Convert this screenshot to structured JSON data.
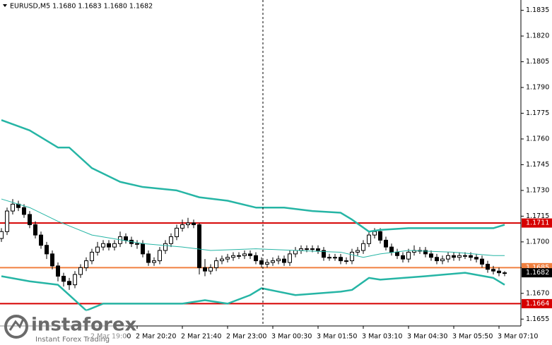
{
  "header": {
    "title": "EURUSD,M5  1.1680 1.1683 1.1680 1.1682"
  },
  "watermark": {
    "brand": "instaforex",
    "tagline": "Instant Forex Trading"
  },
  "chart_data": {
    "type": "candlestick",
    "categories": [
      null,
      null,
      null,
      null,
      null,
      null,
      null,
      null,
      null,
      null,
      null,
      null,
      null,
      null,
      null,
      null,
      "2 Mar 19:00",
      null,
      null,
      null,
      null,
      null,
      null,
      null,
      "2 Mar 20:20",
      null,
      null,
      null,
      null,
      null,
      null,
      null,
      "2 Mar 21:40",
      null,
      null,
      null,
      null,
      null,
      null,
      null,
      "2 Mar 23:00",
      null,
      null,
      null,
      null,
      null,
      null,
      null,
      "3 Mar 00:30",
      null,
      null,
      null,
      null,
      null,
      null,
      null,
      "3 Mar 01:50",
      null,
      null,
      null,
      null,
      null,
      null,
      null,
      "3 Mar 03:10",
      null,
      null,
      null,
      null,
      null,
      null,
      null,
      "3 Mar 04:30",
      null,
      null,
      null,
      null,
      null,
      null,
      null,
      "3 Mar 05:50",
      null,
      null,
      null,
      null,
      null,
      null,
      null,
      "3 Mar 07:10",
      null
    ],
    "open": [
      1.1702,
      1.1706,
      1.1718,
      1.1722,
      1.172,
      1.1716,
      1.171,
      1.1704,
      1.1698,
      1.1693,
      1.1686,
      1.168,
      1.1677,
      1.1675,
      1.1681,
      1.1685,
      1.1689,
      1.1694,
      1.1697,
      1.1699,
      1.1697,
      1.1699,
      1.1703,
      1.1701,
      1.1699,
      1.1699,
      1.1693,
      1.1688,
      1.1689,
      1.1695,
      1.1699,
      1.1703,
      1.1708,
      1.171,
      1.1711,
      1.171,
      1.1685,
      1.1683,
      1.1685,
      1.1689,
      1.169,
      1.1691,
      1.1692,
      1.1692,
      1.1693,
      1.1692,
      1.1689,
      1.1687,
      1.1688,
      1.1689,
      1.169,
      1.1688,
      1.1693,
      1.1695,
      1.1696,
      1.1696,
      1.1696,
      1.1695,
      1.1691,
      1.1691,
      1.1691,
      1.1689,
      1.1689,
      1.1694,
      1.1695,
      1.1699,
      1.1704,
      1.1706,
      1.1701,
      1.1697,
      1.1694,
      1.1692,
      1.169,
      1.1694,
      1.1695,
      1.1695,
      1.1693,
      1.1691,
      1.1689,
      1.169,
      1.1692,
      1.1691,
      1.1692,
      1.1692,
      1.1691,
      1.169,
      1.1687,
      1.1684,
      1.1683,
      1.1682
    ],
    "high": [
      1.1708,
      1.172,
      1.1725,
      1.1724,
      1.1722,
      1.1718,
      1.1712,
      1.1706,
      1.17,
      1.1695,
      1.1688,
      1.1682,
      1.1679,
      1.1683,
      1.1687,
      1.1691,
      1.1696,
      1.17,
      1.1701,
      1.1701,
      1.1701,
      1.1706,
      1.1705,
      1.1703,
      1.1701,
      1.1701,
      1.1695,
      1.1691,
      1.1697,
      1.1701,
      1.1705,
      1.171,
      1.1713,
      1.1714,
      1.1713,
      1.1711,
      1.169,
      1.1687,
      1.1691,
      1.1692,
      1.1693,
      1.1694,
      1.1694,
      1.1695,
      1.1695,
      1.1694,
      1.1691,
      1.169,
      1.1691,
      1.1692,
      1.1692,
      1.1695,
      1.1697,
      1.1698,
      1.1698,
      1.1698,
      1.1698,
      1.1697,
      1.1693,
      1.1693,
      1.1693,
      1.1691,
      1.1696,
      1.1697,
      1.1701,
      1.1706,
      1.1708,
      1.1708,
      1.1703,
      1.1699,
      1.1696,
      1.1694,
      1.1696,
      1.1698,
      1.1697,
      1.1697,
      1.1695,
      1.1693,
      1.1692,
      1.1694,
      1.1694,
      1.1694,
      1.1694,
      1.1694,
      1.1693,
      1.1692,
      1.1689,
      1.1686,
      1.1685,
      1.1683
    ],
    "low": [
      1.17,
      1.1704,
      1.1716,
      1.1718,
      1.1714,
      1.1708,
      1.1702,
      1.1696,
      1.169,
      1.1684,
      1.1677,
      1.1674,
      1.1672,
      1.1673,
      1.1679,
      1.1683,
      1.1687,
      1.1692,
      1.1695,
      1.1695,
      1.1695,
      1.1697,
      1.1699,
      1.1697,
      1.1696,
      1.1691,
      1.1686,
      1.1686,
      1.1687,
      1.1693,
      1.1697,
      1.1701,
      1.1706,
      1.1708,
      1.1708,
      1.1681,
      1.168,
      1.1681,
      1.1683,
      1.1687,
      1.1688,
      1.1689,
      1.169,
      1.169,
      1.169,
      1.1687,
      1.1685,
      1.1685,
      1.1686,
      1.1687,
      1.1686,
      1.1686,
      1.1691,
      1.1693,
      1.1694,
      1.1694,
      1.1693,
      1.1689,
      1.1689,
      1.1689,
      1.1687,
      1.1687,
      1.1687,
      1.1692,
      1.1693,
      1.1697,
      1.1702,
      1.1699,
      1.1695,
      1.1692,
      1.169,
      1.1688,
      1.1688,
      1.1692,
      1.1693,
      1.1691,
      1.1689,
      1.1687,
      1.1687,
      1.1688,
      1.1689,
      1.1689,
      1.169,
      1.1689,
      1.1688,
      1.1685,
      1.1682,
      1.1681,
      1.168,
      1.168
    ],
    "close": [
      1.1706,
      1.1718,
      1.1722,
      1.172,
      1.1716,
      1.171,
      1.1704,
      1.1698,
      1.1693,
      1.1686,
      1.168,
      1.1677,
      1.1675,
      1.1681,
      1.1685,
      1.1689,
      1.1694,
      1.1697,
      1.1699,
      1.1697,
      1.1699,
      1.1703,
      1.1701,
      1.1699,
      1.1699,
      1.1693,
      1.1688,
      1.1689,
      1.1695,
      1.1699,
      1.1703,
      1.1708,
      1.171,
      1.1711,
      1.171,
      1.1685,
      1.1683,
      1.1685,
      1.1689,
      1.169,
      1.1691,
      1.1692,
      1.1692,
      1.1693,
      1.1692,
      1.1689,
      1.1687,
      1.1688,
      1.1689,
      1.169,
      1.1688,
      1.1693,
      1.1695,
      1.1696,
      1.1696,
      1.1696,
      1.1695,
      1.1691,
      1.1691,
      1.1691,
      1.1689,
      1.1689,
      1.1694,
      1.1695,
      1.1699,
      1.1704,
      1.1706,
      1.1701,
      1.1697,
      1.1694,
      1.1692,
      1.169,
      1.1694,
      1.1695,
      1.1695,
      1.1693,
      1.1691,
      1.1689,
      1.169,
      1.1692,
      1.1691,
      1.1692,
      1.1692,
      1.1691,
      1.169,
      1.1687,
      1.1684,
      1.1683,
      1.1682,
      1.1682
    ],
    "color": "#000000",
    "ylim": [
      1.1651,
      1.1841
    ],
    "yticks": [
      1.1655,
      {
        "value": 1.167,
        "label": "1.1670"
      },
      1.1685,
      {
        "value": 1.17,
        "label": "1.1700"
      },
      1.1715,
      {
        "value": 1.173,
        "label": "1.1730"
      },
      1.1745,
      {
        "value": 1.176,
        "label": "1.1760"
      },
      1.1775,
      {
        "value": 1.179,
        "label": "1.1790"
      },
      1.1805,
      {
        "value": 1.182,
        "label": "1.1820"
      },
      1.1835
    ],
    "indicators": [
      {
        "x": [
          0,
          5,
          10,
          12,
          16,
          21,
          25,
          31,
          35,
          40,
          45,
          50,
          55,
          60,
          62,
          65,
          67,
          72,
          77,
          82,
          87,
          89
        ],
        "values": [
          1.1771,
          1.1765,
          1.1755,
          1.1755,
          1.1743,
          1.1735,
          1.1732,
          1.173,
          1.1726,
          1.1724,
          1.172,
          1.172,
          1.1718,
          1.1717,
          1.1713,
          1.1706,
          1.1707,
          1.1708,
          1.1708,
          1.1708,
          1.1708,
          1.171
        ],
        "color": "#26b5a5",
        "line_width": 2.5
      },
      {
        "x": [
          0,
          5,
          10,
          16,
          25,
          32,
          37,
          45,
          52,
          60,
          64,
          67,
          72,
          80,
          87,
          89
        ],
        "values": [
          1.1725,
          1.172,
          1.1712,
          1.1704,
          1.1699,
          1.1697,
          1.1695,
          1.1696,
          1.1695,
          1.1694,
          1.1691,
          1.1693,
          1.1695,
          1.1694,
          1.1692,
          1.1692
        ],
        "color": "#26b5a5",
        "line_width": 1
      },
      {
        "x": [
          0,
          5,
          10,
          12,
          15,
          18,
          22,
          32,
          36,
          40,
          44,
          46,
          52,
          60,
          62,
          65,
          67,
          75,
          82,
          87,
          89
        ],
        "values": [
          1.168,
          1.1677,
          1.1675,
          1.1669,
          1.166,
          1.1664,
          1.1664,
          1.1664,
          1.1666,
          1.1664,
          1.1669,
          1.1673,
          1.1669,
          1.1671,
          1.1672,
          1.1679,
          1.1678,
          1.168,
          1.1682,
          1.1679,
          1.1675
        ],
        "color": "#26b5a5",
        "line_width": 2.5
      }
    ],
    "levels": [
      {
        "value": 1.1711,
        "color": "#d60000"
      },
      {
        "value": 1.1664,
        "color": "#d60000"
      },
      {
        "value": 1.1685,
        "color": "#f08040"
      }
    ],
    "last_price": 1.1682
  }
}
